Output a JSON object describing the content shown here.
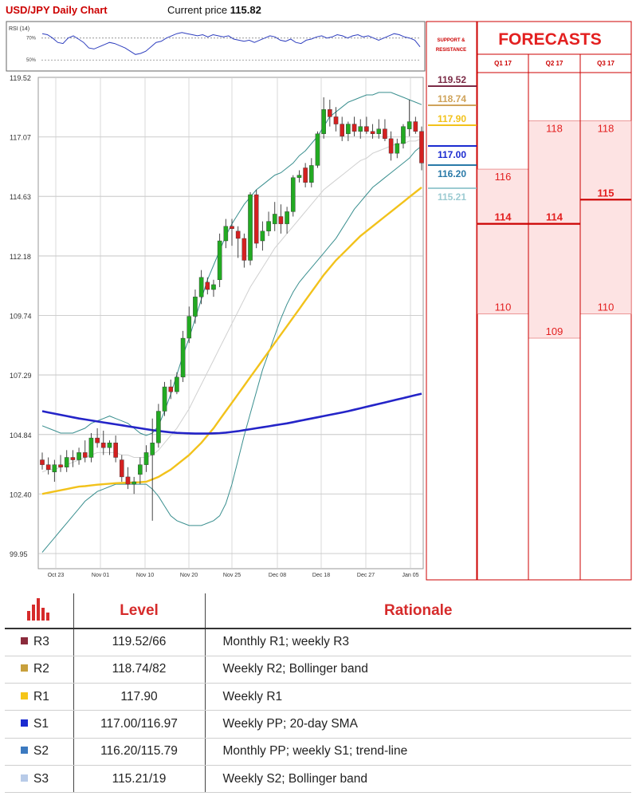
{
  "header": {
    "title": "USD/JPY Daily Chart",
    "price_label": "Current price",
    "price_value": "115.82"
  },
  "rsi": {
    "label": "RSI (14)",
    "tick_labels": [
      "70%",
      "50%"
    ],
    "values": [
      74,
      73,
      70,
      66,
      65,
      70,
      72,
      69,
      66,
      61,
      60,
      62,
      64,
      66,
      65,
      63,
      61,
      58,
      55,
      56,
      58,
      62,
      66,
      67,
      70,
      72,
      74,
      75,
      74,
      73,
      72,
      73,
      71,
      73,
      72,
      71,
      72,
      69,
      68,
      67,
      68,
      66,
      68,
      70,
      72,
      71,
      68,
      67,
      69,
      66,
      65,
      68,
      69,
      71,
      72,
      70,
      71,
      73,
      72,
      70,
      72,
      73,
      71,
      72,
      70,
      68,
      70,
      72,
      74,
      73,
      71,
      70,
      68,
      62
    ]
  },
  "chart_data": {
    "type": "candlestick",
    "title": "USD/JPY Daily Chart",
    "y_tick_labels": [
      "119.52",
      "117.07",
      "114.63",
      "112.18",
      "109.74",
      "107.29",
      "104.84",
      "102.40",
      "99.95"
    ],
    "ylim": [
      99.95,
      119.52
    ],
    "x_tick_labels": [
      "Oct 23",
      "Nov 01",
      "Nov 10",
      "Nov 20",
      "Nov 25",
      "Dec 08",
      "Dec 18",
      "Dec 27",
      "Jan 05"
    ],
    "grid": true,
    "candles": [
      [
        103.8,
        104.1,
        103.4,
        103.6
      ],
      [
        103.6,
        103.9,
        103.2,
        103.4
      ],
      [
        103.3,
        103.8,
        102.9,
        103.6
      ],
      [
        103.6,
        104.0,
        103.3,
        103.5
      ],
      [
        103.5,
        104.2,
        103.3,
        103.9
      ],
      [
        103.9,
        104.2,
        103.5,
        103.8
      ],
      [
        103.8,
        104.3,
        103.6,
        104.1
      ],
      [
        104.1,
        104.6,
        103.7,
        103.9
      ],
      [
        103.9,
        104.9,
        103.7,
        104.7
      ],
      [
        104.7,
        105.1,
        104.3,
        104.5
      ],
      [
        104.5,
        105.0,
        104.0,
        104.3
      ],
      [
        104.3,
        104.6,
        104.0,
        104.5
      ],
      [
        104.5,
        104.8,
        103.7,
        103.9
      ],
      [
        103.8,
        104.0,
        102.9,
        103.1
      ],
      [
        103.1,
        103.5,
        102.6,
        102.8
      ],
      [
        102.8,
        103.1,
        102.4,
        102.9
      ],
      [
        103.2,
        103.9,
        102.8,
        103.6
      ],
      [
        103.6,
        104.4,
        103.3,
        104.1
      ],
      [
        104.0,
        105.5,
        101.3,
        104.5
      ],
      [
        104.5,
        106.1,
        104.3,
        105.8
      ],
      [
        105.8,
        107.0,
        105.6,
        106.8
      ],
      [
        106.8,
        107.1,
        106.3,
        106.6
      ],
      [
        106.6,
        107.4,
        106.5,
        107.2
      ],
      [
        107.2,
        109.1,
        107.0,
        108.8
      ],
      [
        108.8,
        110.1,
        108.6,
        109.7
      ],
      [
        109.7,
        110.8,
        109.4,
        110.5
      ],
      [
        110.5,
        111.6,
        110.2,
        111.3
      ],
      [
        111.1,
        111.3,
        110.6,
        110.8
      ],
      [
        110.8,
        111.2,
        110.5,
        111.0
      ],
      [
        111.2,
        113.1,
        110.9,
        112.8
      ],
      [
        112.8,
        113.7,
        112.5,
        113.4
      ],
      [
        113.4,
        113.7,
        112.6,
        113.3
      ],
      [
        113.2,
        113.4,
        112.1,
        112.9
      ],
      [
        112.9,
        113.1,
        111.7,
        112.0
      ],
      [
        112.0,
        114.8,
        111.8,
        114.7
      ],
      [
        114.7,
        114.9,
        112.5,
        112.7
      ],
      [
        112.8,
        113.6,
        112.4,
        113.2
      ],
      [
        113.2,
        114.0,
        113.0,
        113.6
      ],
      [
        113.5,
        114.4,
        113.2,
        113.9
      ],
      [
        113.8,
        114.3,
        113.1,
        113.5
      ],
      [
        113.5,
        114.2,
        113.1,
        114.0
      ],
      [
        114.0,
        115.5,
        113.8,
        115.4
      ],
      [
        115.4,
        115.7,
        115.2,
        115.5
      ],
      [
        115.8,
        116.0,
        115.0,
        115.2
      ],
      [
        115.2,
        116.2,
        115.0,
        115.9
      ],
      [
        115.9,
        117.3,
        115.8,
        117.2
      ],
      [
        117.2,
        118.7,
        117.0,
        118.2
      ],
      [
        118.2,
        118.6,
        117.5,
        117.9
      ],
      [
        117.9,
        118.3,
        117.3,
        117.6
      ],
      [
        117.6,
        117.9,
        116.9,
        117.1
      ],
      [
        117.2,
        117.7,
        116.9,
        117.6
      ],
      [
        117.6,
        117.9,
        117.1,
        117.3
      ],
      [
        117.3,
        117.8,
        117.0,
        117.5
      ],
      [
        117.5,
        117.9,
        117.2,
        117.3
      ],
      [
        117.3,
        117.6,
        117.0,
        117.2
      ],
      [
        117.2,
        117.8,
        117.0,
        117.4
      ],
      [
        117.4,
        117.8,
        116.9,
        117.0
      ],
      [
        117.0,
        117.3,
        116.1,
        116.4
      ],
      [
        116.4,
        117.0,
        116.2,
        116.8
      ],
      [
        116.8,
        117.6,
        116.6,
        117.5
      ],
      [
        117.4,
        118.6,
        117.1,
        117.7
      ],
      [
        117.7,
        117.9,
        117.2,
        117.3
      ],
      [
        117.3,
        117.5,
        115.7,
        116.0
      ]
    ],
    "indicators": [
      {
        "name": "upper-bollinger",
        "color": "#3a8f8f",
        "values": [
          105.2,
          105.1,
          105.0,
          104.9,
          104.9,
          104.9,
          105.0,
          105.1,
          105.3,
          105.4,
          105.5,
          105.6,
          105.5,
          105.4,
          105.3,
          105.1,
          104.9,
          104.8,
          104.9,
          105.2,
          105.8,
          106.5,
          107.3,
          108.1,
          108.8,
          109.6,
          110.4,
          111.2,
          111.8,
          112.4,
          113.0,
          113.5,
          113.9,
          114.3,
          114.6,
          114.9,
          115.1,
          115.3,
          115.5,
          115.6,
          115.8,
          116.0,
          116.3,
          116.5,
          116.8,
          117.1,
          117.5,
          117.9,
          118.1,
          118.3,
          118.5,
          118.6,
          118.7,
          118.8,
          118.8,
          118.9,
          118.9,
          118.9,
          118.8,
          118.7,
          118.6,
          118.5,
          118.4
        ]
      },
      {
        "name": "middle-sma",
        "color": "#d0d0d0",
        "values": [
          103.3,
          103.4,
          103.4,
          103.5,
          103.6,
          103.7,
          103.8,
          103.9,
          104.0,
          104.1,
          104.1,
          104.1,
          104.1,
          104.0,
          104.0,
          103.9,
          103.9,
          103.9,
          104.0,
          104.2,
          104.5,
          104.8,
          105.1,
          105.5,
          105.9,
          106.4,
          106.9,
          107.4,
          107.9,
          108.4,
          108.9,
          109.4,
          109.9,
          110.4,
          110.9,
          111.3,
          111.7,
          112.1,
          112.5,
          112.8,
          113.1,
          113.4,
          113.7,
          114.0,
          114.3,
          114.6,
          114.9,
          115.1,
          115.3,
          115.5,
          115.7,
          115.9,
          116.1,
          116.2,
          116.4,
          116.5,
          116.6,
          116.7,
          116.8,
          116.8,
          116.9,
          116.9,
          117.0
        ]
      },
      {
        "name": "lower-bollinger",
        "color": "#3a8f8f",
        "values": [
          100.0,
          100.3,
          100.6,
          100.9,
          101.2,
          101.5,
          101.8,
          102.1,
          102.3,
          102.5,
          102.6,
          102.7,
          102.8,
          102.8,
          102.8,
          102.8,
          102.8,
          102.8,
          102.6,
          102.3,
          101.9,
          101.5,
          101.3,
          101.2,
          101.1,
          101.1,
          101.1,
          101.2,
          101.3,
          101.5,
          102.0,
          102.8,
          103.8,
          104.8,
          105.7,
          106.6,
          107.5,
          108.2,
          108.9,
          109.6,
          110.2,
          110.7,
          111.1,
          111.4,
          111.7,
          112.0,
          112.3,
          112.6,
          112.9,
          113.3,
          113.7,
          114.1,
          114.4,
          114.7,
          115.0,
          115.2,
          115.4,
          115.6,
          115.8,
          116.0,
          116.2,
          116.5,
          116.7
        ]
      },
      {
        "name": "yellow-ma",
        "color": "#f2c21b",
        "values": [
          102.4,
          102.45,
          102.5,
          102.55,
          102.6,
          102.65,
          102.7,
          102.72,
          102.75,
          102.78,
          102.8,
          102.82,
          102.84,
          102.85,
          102.86,
          102.87,
          102.88,
          102.9,
          103.0,
          103.1,
          103.25,
          103.4,
          103.6,
          103.8,
          104.0,
          104.25,
          104.5,
          104.8,
          105.1,
          105.45,
          105.8,
          106.15,
          106.5,
          106.85,
          107.2,
          107.55,
          107.9,
          108.25,
          108.6,
          108.95,
          109.3,
          109.65,
          110.0,
          110.35,
          110.7,
          111.05,
          111.4,
          111.7,
          112.0,
          112.25,
          112.5,
          112.75,
          113.0,
          113.2,
          113.4,
          113.6,
          113.8,
          114.0,
          114.2,
          114.4,
          114.6,
          114.8,
          115.0
        ]
      },
      {
        "name": "blue-ma",
        "color": "#2424c8",
        "values": [
          105.8,
          105.75,
          105.7,
          105.65,
          105.6,
          105.55,
          105.5,
          105.46,
          105.42,
          105.38,
          105.34,
          105.3,
          105.26,
          105.22,
          105.18,
          105.14,
          105.1,
          105.06,
          105.02,
          104.99,
          104.96,
          104.93,
          104.91,
          104.9,
          104.89,
          104.88,
          104.88,
          104.88,
          104.89,
          104.9,
          104.92,
          104.95,
          104.98,
          105.02,
          105.06,
          105.1,
          105.14,
          105.18,
          105.22,
          105.26,
          105.3,
          105.35,
          105.4,
          105.45,
          105.5,
          105.55,
          105.6,
          105.65,
          105.7,
          105.75,
          105.8,
          105.86,
          105.92,
          105.98,
          106.04,
          106.1,
          106.16,
          106.22,
          106.28,
          106.34,
          106.4,
          106.46,
          106.52
        ]
      }
    ],
    "support_resistance": {
      "title": "SUPPORT & RESISTANCE",
      "levels": [
        {
          "label": "119.52",
          "color": "#7b2b46"
        },
        {
          "label": "118.74",
          "color": "#cfa35a"
        },
        {
          "label": "117.90",
          "color": "#f2c21b"
        },
        {
          "label": "117.00",
          "color": "#1b2bd0"
        },
        {
          "label": "116.20",
          "color": "#2a7aa8"
        },
        {
          "label": "115.21",
          "color": "#9ccbd2"
        }
      ]
    },
    "forecasts": {
      "title": "FORECASTS",
      "color": "#e32020",
      "band_fill": "#fde3e3",
      "columns": [
        {
          "quarter": "Q1 17",
          "high": "116",
          "mid": "114",
          "low": "110"
        },
        {
          "quarter": "Q2 17",
          "high": "118",
          "mid": "114",
          "low": "109"
        },
        {
          "quarter": "Q3 17",
          "high": "118",
          "mid": "115",
          "low": "110"
        }
      ]
    }
  },
  "levels_table": {
    "headers": {
      "icon": "bar-chart-icon",
      "level": "Level",
      "rationale": "Rationale"
    },
    "rows": [
      {
        "code": "R3",
        "level": "119.52/66",
        "rationale": "Monthly R1; weekly R3",
        "color": "#8b2b3c"
      },
      {
        "code": "R2",
        "level": "118.74/82",
        "rationale": "Weekly R2; Bollinger band",
        "color": "#c8a03c"
      },
      {
        "code": "R1",
        "level": "117.90",
        "rationale": "Weekly R1",
        "color": "#f5c518"
      },
      {
        "code": "S1",
        "level": "117.00/116.97",
        "rationale": "Weekly PP; 20-day SMA",
        "color": "#1b2bd0"
      },
      {
        "code": "S2",
        "level": "116.20/115.79",
        "rationale": "Monthly PP; weekly S1; trend-line",
        "color": "#3c7ac0"
      },
      {
        "code": "S3",
        "level": "115.21/19",
        "rationale": "Weekly S2; Bollinger band",
        "color": "#b8cbe8"
      }
    ]
  }
}
